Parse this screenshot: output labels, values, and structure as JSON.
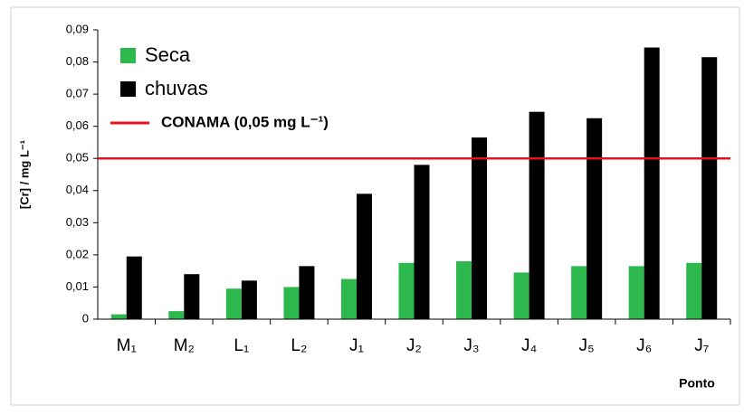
{
  "chart_data": {
    "type": "bar",
    "y_label": "[Cr] / mg L⁻¹",
    "x_label": "Ponto",
    "categories": [
      "M₁",
      "M₂",
      "L₁",
      "L₂",
      "J₁",
      "J₂",
      "J₃",
      "J₄",
      "J₅",
      "J₆",
      "J₇"
    ],
    "series": [
      {
        "name": "Seca",
        "color": "#2db84d",
        "values": [
          0.0015,
          0.0025,
          0.0095,
          0.01,
          0.0125,
          0.0175,
          0.018,
          0.0145,
          0.0165,
          0.0165,
          0.0175
        ]
      },
      {
        "name": "chuvas",
        "color": "#000000",
        "values": [
          0.0195,
          0.014,
          0.012,
          0.0165,
          0.039,
          0.048,
          0.0565,
          0.0645,
          0.0625,
          0.0845,
          0.0815
        ]
      }
    ],
    "reference_line": {
      "value": 0.05,
      "label": "CONAMA (0,05 mg L⁻¹)",
      "color": "#e8111b"
    },
    "ylim": [
      0,
      0.09
    ],
    "yticks": [
      0,
      {
        "value": 0.01,
        "label": "0,01"
      },
      {
        "value": 0.02,
        "label": "0,02"
      },
      {
        "value": 0.03,
        "label": "0,03"
      },
      {
        "value": 0.04,
        "label": "0,04"
      },
      {
        "value": 0.05,
        "label": "0,05"
      },
      {
        "value": 0.06,
        "label": "0,06"
      },
      {
        "value": 0.07,
        "label": "0,07"
      },
      {
        "value": 0.08,
        "label": "0,08"
      },
      {
        "value": 0.09,
        "label": "0,09"
      }
    ],
    "grid": false,
    "legend": "top-left"
  }
}
